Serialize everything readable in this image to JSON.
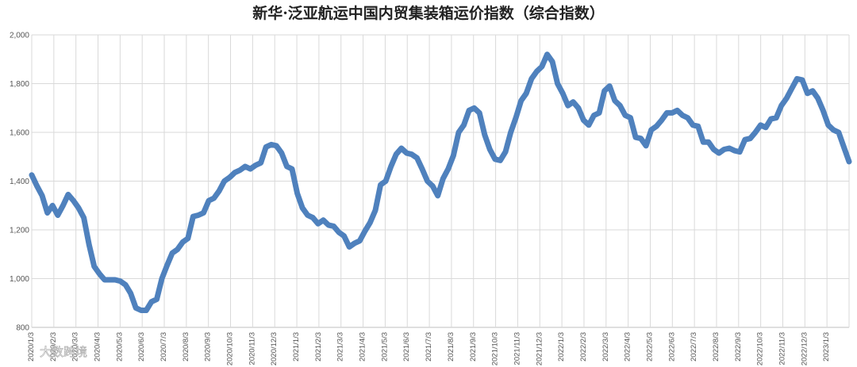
{
  "chart_data": {
    "type": "line",
    "title": "新华·泛亚航运中国内贸集装箱运价指数（综合指数）",
    "xlabel": "",
    "ylabel": "",
    "ylim": [
      800,
      2000
    ],
    "yticks": [
      "800",
      "1,000",
      "1,200",
      "1,400",
      "1,600",
      "1,800",
      "2,000"
    ],
    "grid": true,
    "legend": "none",
    "x_tick_labels": [
      "2020/1/3",
      "2020/2/3",
      "2020/3/3",
      "2020/4/3",
      "2020/5/3",
      "2020/6/3",
      "2020/7/3",
      "2020/8/3",
      "2020/9/3",
      "2020/10/3",
      "2020/11/3",
      "2020/12/3",
      "2021/1/3",
      "2021/2/3",
      "2021/3/3",
      "2021/4/3",
      "2021/5/3",
      "2021/6/3",
      "2021/7/3",
      "2021/8/3",
      "2021/9/3",
      "2021/10/3",
      "2021/11/3",
      "2021/12/3",
      "2022/1/3",
      "2022/2/3",
      "2022/3/3",
      "2022/4/3",
      "2022/5/3",
      "2022/6/3",
      "2022/7/3",
      "2022/8/3",
      "2022/9/3",
      "2022/10/3",
      "2022/11/3",
      "2022/12/3",
      "2023/1/3"
    ],
    "series": [
      {
        "color": "#4f81bd",
        "values": [
          1425,
          1380,
          1340,
          1270,
          1300,
          1260,
          1300,
          1345,
          1320,
          1290,
          1250,
          1140,
          1050,
          1020,
          995,
          995,
          995,
          990,
          975,
          940,
          880,
          870,
          870,
          905,
          915,
          1000,
          1055,
          1105,
          1120,
          1150,
          1165,
          1255,
          1260,
          1270,
          1320,
          1330,
          1360,
          1400,
          1415,
          1435,
          1445,
          1460,
          1450,
          1465,
          1475,
          1540,
          1550,
          1545,
          1515,
          1460,
          1450,
          1350,
          1290,
          1260,
          1250,
          1225,
          1240,
          1220,
          1215,
          1190,
          1175,
          1130,
          1145,
          1155,
          1195,
          1230,
          1280,
          1385,
          1400,
          1460,
          1510,
          1535,
          1515,
          1510,
          1495,
          1450,
          1400,
          1380,
          1340,
          1410,
          1450,
          1505,
          1600,
          1630,
          1690,
          1700,
          1680,
          1590,
          1530,
          1490,
          1485,
          1520,
          1600,
          1660,
          1730,
          1760,
          1820,
          1850,
          1870,
          1920,
          1890,
          1800,
          1760,
          1710,
          1725,
          1700,
          1650,
          1630,
          1670,
          1680,
          1770,
          1790,
          1730,
          1710,
          1670,
          1660,
          1580,
          1575,
          1545,
          1610,
          1625,
          1650,
          1680,
          1680,
          1690,
          1670,
          1660,
          1630,
          1625,
          1560,
          1560,
          1530,
          1515,
          1530,
          1535,
          1525,
          1520,
          1570,
          1575,
          1600,
          1630,
          1620,
          1655,
          1660,
          1710,
          1740,
          1780,
          1820,
          1815,
          1760,
          1770,
          1740,
          1690,
          1630,
          1610,
          1600,
          1540,
          1480
        ]
      }
    ],
    "watermark": "大数跨境"
  }
}
